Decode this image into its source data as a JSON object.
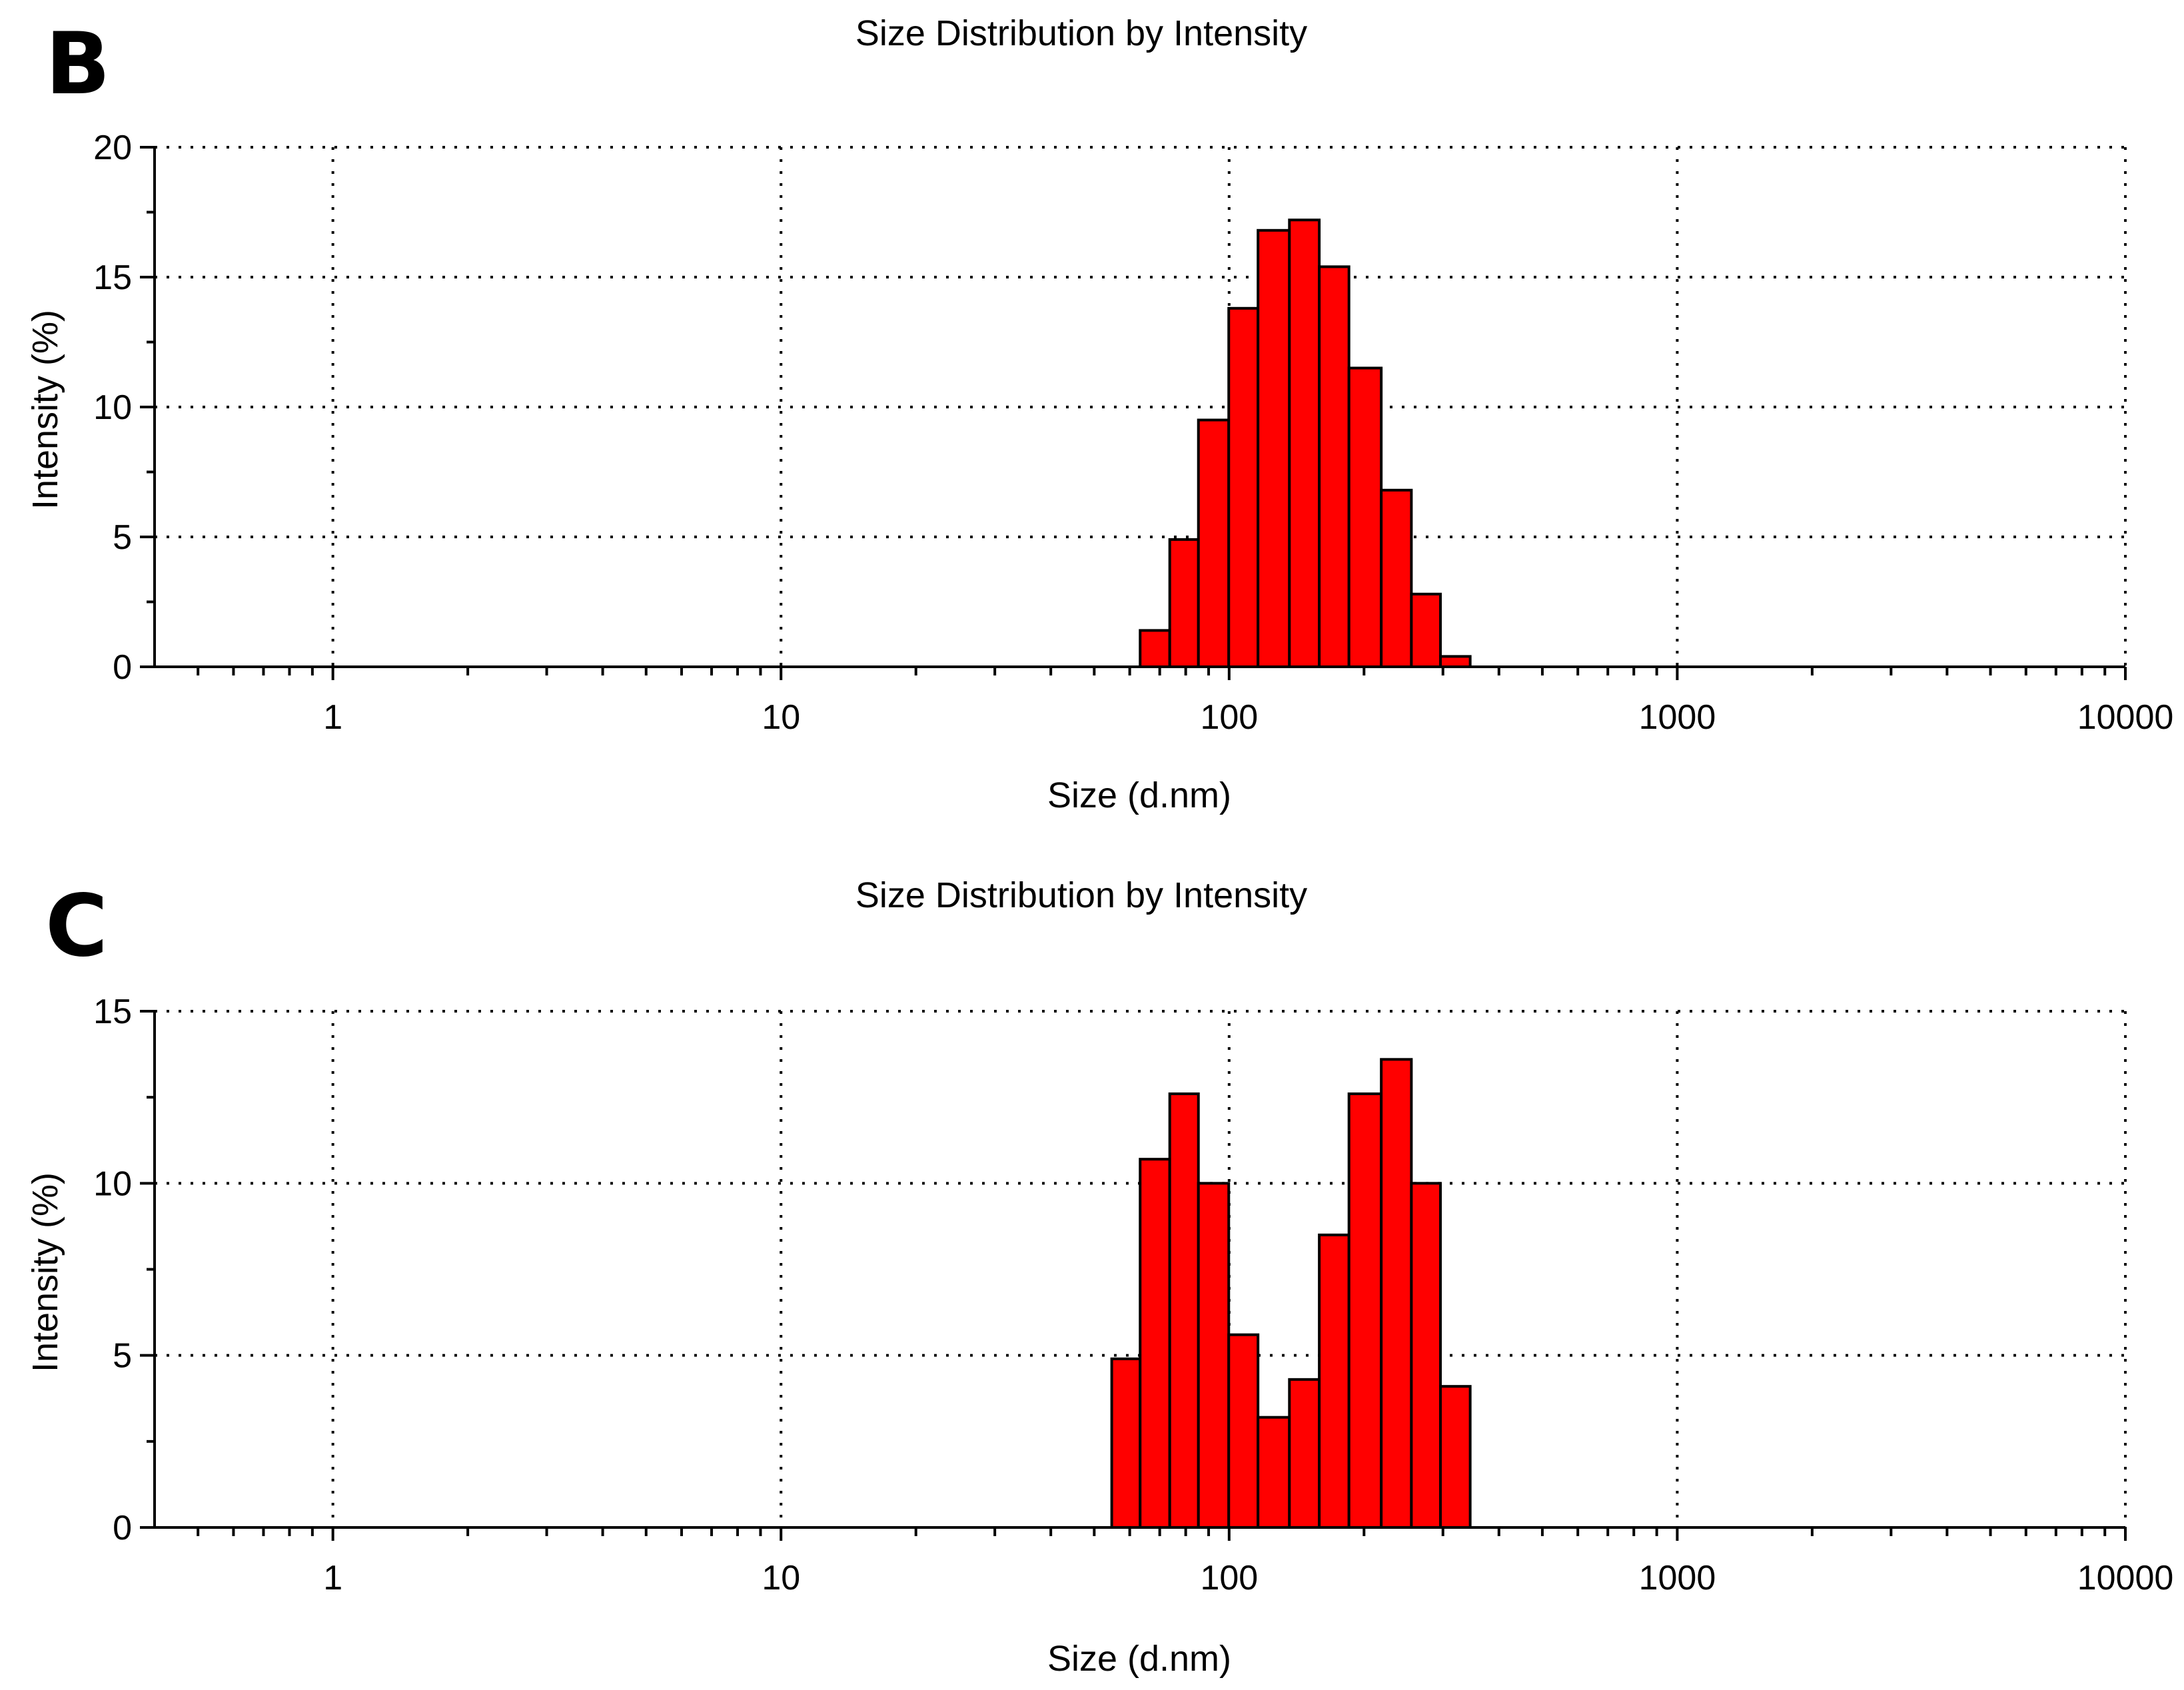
{
  "chart_data": [
    {
      "panel_label": "B",
      "type": "bar",
      "title": "Size Distribution by Intensity",
      "xlabel": "Size (d.nm)",
      "ylabel": "Intensity (%)",
      "x_scale": "log",
      "xlim": [
        0.4,
        10000
      ],
      "ylim": [
        0,
        20
      ],
      "x_ticks": [
        1,
        10,
        100,
        1000,
        10000
      ],
      "x_tick_labels": [
        "1",
        "10",
        "100",
        "1000",
        "10000"
      ],
      "y_ticks": [
        0,
        5,
        10,
        15,
        20
      ],
      "y_tick_labels": [
        "0",
        "5",
        "10",
        "15",
        "20"
      ],
      "grid": true,
      "bar_color": "#ff0000",
      "bins": [
        {
          "x_start": 63.3,
          "x_end": 73.7,
          "value": 1.4
        },
        {
          "x_start": 73.7,
          "x_end": 85.4,
          "value": 4.9
        },
        {
          "x_start": 85.4,
          "x_end": 99.8,
          "value": 9.5
        },
        {
          "x_start": 99.8,
          "x_end": 116.0,
          "value": 13.8
        },
        {
          "x_start": 116.0,
          "x_end": 136.3,
          "value": 16.8
        },
        {
          "x_start": 136.3,
          "x_end": 158.9,
          "value": 17.2
        },
        {
          "x_start": 158.9,
          "x_end": 185.1,
          "value": 15.4
        },
        {
          "x_start": 185.1,
          "x_end": 218.5,
          "value": 11.5
        },
        {
          "x_start": 218.5,
          "x_end": 255.1,
          "value": 6.8
        },
        {
          "x_start": 255.1,
          "x_end": 296.2,
          "value": 2.8
        },
        {
          "x_start": 296.2,
          "x_end": 345.1,
          "value": 0.4
        }
      ]
    },
    {
      "panel_label": "C",
      "type": "bar",
      "title": "Size Distribution by Intensity",
      "xlabel": "Size (d.nm)",
      "ylabel": "Intensity (%)",
      "x_scale": "log",
      "xlim": [
        0.4,
        10000
      ],
      "ylim": [
        0,
        15
      ],
      "x_ticks": [
        1,
        10,
        100,
        1000,
        10000
      ],
      "x_tick_labels": [
        "1",
        "10",
        "100",
        "1000",
        "10000"
      ],
      "y_ticks": [
        0,
        5,
        10,
        15
      ],
      "y_tick_labels": [
        "0",
        "5",
        "10",
        "15"
      ],
      "grid": true,
      "bar_color": "#ff0000",
      "bins": [
        {
          "x_start": 54.7,
          "x_end": 63.3,
          "value": 4.9
        },
        {
          "x_start": 63.3,
          "x_end": 73.7,
          "value": 10.7
        },
        {
          "x_start": 73.7,
          "x_end": 85.4,
          "value": 12.6
        },
        {
          "x_start": 85.4,
          "x_end": 99.8,
          "value": 10.0
        },
        {
          "x_start": 99.8,
          "x_end": 116.0,
          "value": 5.6
        },
        {
          "x_start": 116.0,
          "x_end": 136.3,
          "value": 3.2
        },
        {
          "x_start": 136.3,
          "x_end": 158.9,
          "value": 4.3
        },
        {
          "x_start": 158.9,
          "x_end": 185.1,
          "value": 8.5
        },
        {
          "x_start": 185.1,
          "x_end": 218.5,
          "value": 12.6
        },
        {
          "x_start": 218.5,
          "x_end": 255.1,
          "value": 13.6
        },
        {
          "x_start": 255.1,
          "x_end": 296.2,
          "value": 10.0
        },
        {
          "x_start": 296.2,
          "x_end": 345.1,
          "value": 4.1
        }
      ]
    }
  ]
}
